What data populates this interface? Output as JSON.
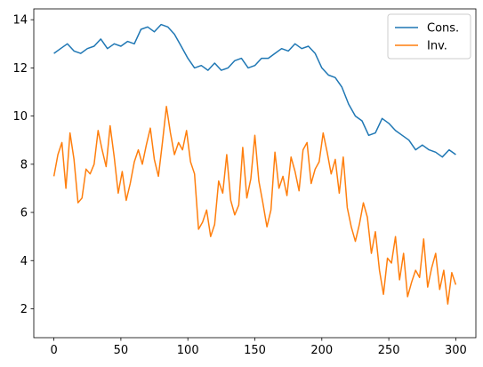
{
  "chart_data": {
    "type": "line",
    "title": "",
    "xlabel": "",
    "ylabel": "",
    "xlim": [
      -15,
      315
    ],
    "ylim": [
      0.8,
      14.45
    ],
    "xticks": [
      0,
      50,
      100,
      150,
      200,
      250,
      300
    ],
    "yticks": [
      2,
      4,
      6,
      8,
      10,
      12,
      14
    ],
    "grid": false,
    "legend_position": "top-right",
    "series": [
      {
        "name": "Cons.",
        "color": "#1f77b4",
        "x": [
          0,
          5,
          10,
          15,
          20,
          25,
          30,
          35,
          40,
          45,
          50,
          55,
          60,
          65,
          70,
          75,
          80,
          85,
          90,
          95,
          100,
          105,
          110,
          115,
          120,
          125,
          130,
          135,
          140,
          145,
          150,
          155,
          160,
          165,
          170,
          175,
          180,
          185,
          190,
          195,
          200,
          205,
          210,
          215,
          220,
          225,
          230,
          235,
          240,
          245,
          250,
          255,
          260,
          265,
          270,
          275,
          280,
          285,
          290,
          295,
          300
        ],
        "values": [
          12.6,
          12.8,
          13.0,
          12.7,
          12.6,
          12.8,
          12.9,
          13.2,
          12.8,
          13.0,
          12.9,
          13.1,
          13.0,
          13.6,
          13.7,
          13.5,
          13.8,
          13.7,
          13.4,
          12.9,
          12.4,
          12.0,
          12.1,
          11.9,
          12.2,
          11.9,
          12.0,
          12.3,
          12.4,
          12.0,
          12.1,
          12.4,
          12.4,
          12.6,
          12.8,
          12.7,
          13.0,
          12.8,
          12.9,
          12.6,
          12.0,
          11.7,
          11.6,
          11.2,
          10.5,
          10.0,
          9.8,
          9.2,
          9.3,
          9.9,
          9.7,
          9.4,
          9.2,
          9.0,
          8.6,
          8.8,
          8.6,
          8.5,
          8.3,
          8.6,
          8.4
        ]
      },
      {
        "name": "Inv.",
        "color": "#ff7f0e",
        "x": [
          0,
          3,
          6,
          9,
          12,
          15,
          18,
          21,
          24,
          27,
          30,
          33,
          36,
          39,
          42,
          45,
          48,
          51,
          54,
          57,
          60,
          63,
          66,
          69,
          72,
          75,
          78,
          81,
          84,
          87,
          90,
          93,
          96,
          99,
          102,
          105,
          108,
          111,
          114,
          117,
          120,
          123,
          126,
          129,
          132,
          135,
          138,
          141,
          144,
          147,
          150,
          153,
          156,
          159,
          162,
          165,
          168,
          171,
          174,
          177,
          180,
          183,
          186,
          189,
          192,
          195,
          198,
          201,
          204,
          207,
          210,
          213,
          216,
          219,
          222,
          225,
          228,
          231,
          234,
          237,
          240,
          243,
          246,
          249,
          252,
          255,
          258,
          261,
          264,
          267,
          270,
          273,
          276,
          279,
          282,
          285,
          288,
          291,
          294,
          297,
          300
        ],
        "values": [
          7.5,
          8.4,
          8.9,
          7.0,
          9.3,
          8.2,
          6.4,
          6.6,
          7.8,
          7.6,
          8.0,
          9.4,
          8.6,
          7.9,
          9.6,
          8.3,
          6.8,
          7.7,
          6.5,
          7.2,
          8.1,
          8.6,
          8.0,
          8.8,
          9.5,
          8.2,
          7.5,
          8.9,
          10.4,
          9.3,
          8.4,
          8.9,
          8.6,
          9.4,
          8.1,
          7.6,
          5.3,
          5.6,
          6.1,
          5.0,
          5.5,
          7.3,
          6.8,
          8.4,
          6.5,
          5.9,
          6.3,
          8.7,
          6.6,
          7.4,
          9.2,
          7.3,
          6.4,
          5.4,
          6.1,
          8.5,
          7.0,
          7.5,
          6.7,
          8.3,
          7.7,
          6.9,
          8.6,
          8.9,
          7.2,
          7.8,
          8.1,
          9.3,
          8.5,
          7.6,
          8.2,
          6.8,
          8.3,
          6.2,
          5.4,
          4.8,
          5.5,
          6.4,
          5.8,
          4.3,
          5.2,
          3.6,
          2.6,
          4.1,
          3.9,
          5.0,
          3.2,
          4.3,
          2.5,
          3.1,
          3.6,
          3.3,
          4.9,
          2.9,
          3.7,
          4.3,
          2.8,
          3.6,
          2.2,
          3.5,
          3.0
        ]
      }
    ]
  }
}
